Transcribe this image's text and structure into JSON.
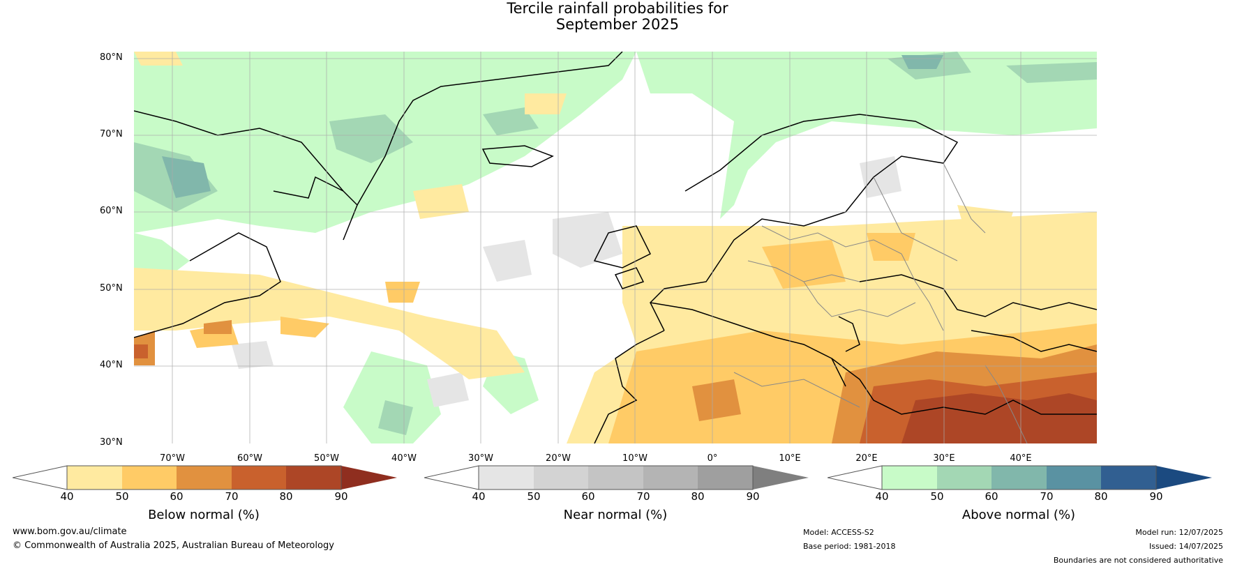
{
  "title": {
    "line1": "Tercile rainfall probabilities for",
    "line2": "September 2025"
  },
  "map": {
    "region": "North Atlantic and Europe",
    "lat_range": [
      30,
      81
    ],
    "lon_range": [
      -85,
      40
    ],
    "lat_labels": [
      "80°N",
      "70°N",
      "60°N",
      "50°N",
      "40°N",
      "30°N"
    ],
    "lon_labels": [
      "70°W",
      "60°W",
      "50°W",
      "40°W",
      "30°W",
      "20°W",
      "10°W",
      "0°",
      "10°E",
      "20°E",
      "30°E",
      "40°E"
    ]
  },
  "colorbars": [
    {
      "name": "below",
      "label": "Below normal (%)",
      "ticks": [
        "40",
        "50",
        "60",
        "70",
        "80",
        "90"
      ],
      "colors": [
        "#ffffff",
        "#ffeaa0",
        "#ffcb66",
        "#e1913f",
        "#c9612d",
        "#ad4626",
        "#8f2e1f"
      ]
    },
    {
      "name": "near",
      "label": "Near normal (%)",
      "ticks": [
        "40",
        "50",
        "60",
        "70",
        "80",
        "90"
      ],
      "colors": [
        "#ffffff",
        "#e5e5e5",
        "#d3d3d3",
        "#c4c4c4",
        "#b4b4b4",
        "#9f9f9f",
        "#7f7f7f"
      ]
    },
    {
      "name": "above",
      "label": "Above normal (%)",
      "ticks": [
        "40",
        "50",
        "60",
        "70",
        "80",
        "90"
      ],
      "colors": [
        "#ffffff",
        "#c8fbc8",
        "#a3d7b4",
        "#81b7ab",
        "#5a92a2",
        "#315f91",
        "#1b4a80"
      ]
    }
  ],
  "footer": {
    "website": "www.bom.gov.au/climate",
    "copyright": "© Commonwealth of Australia 2025, Australian Bureau of Meteorology",
    "model": "Model: ACCESS-S2",
    "base_period": "Base period: 1981-2018",
    "model_run": "Model run: 12/07/2025",
    "issued": "Issued: 14/07/2025",
    "disclaimer": "Boundaries are not considered authoritative"
  }
}
